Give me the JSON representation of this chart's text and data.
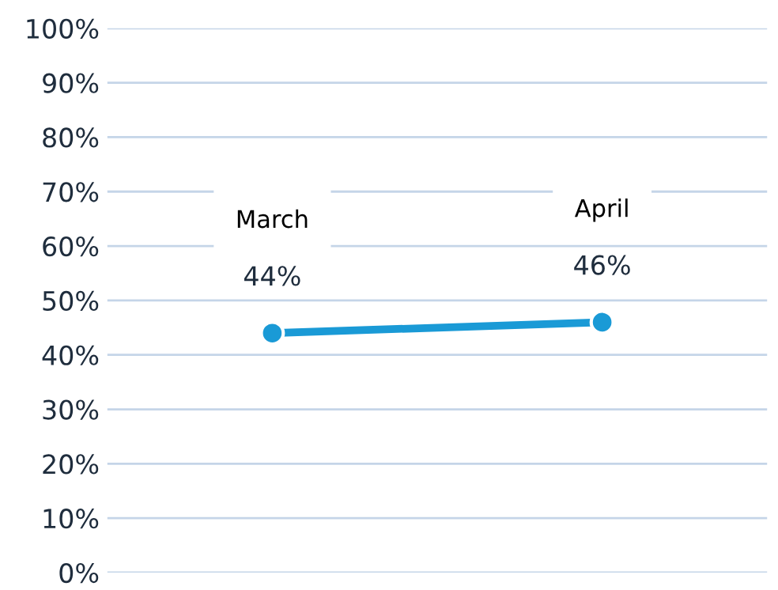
{
  "chart_data": {
    "type": "line",
    "categories": [
      "March",
      "April"
    ],
    "series": [
      {
        "color": "#1a9ad6",
        "values": [
          44,
          46
        ],
        "value_labels": [
          "44%",
          "46%"
        ]
      }
    ],
    "ylim": [
      0,
      100
    ],
    "yticks": [
      {
        "value": 0,
        "label": "0%"
      },
      {
        "value": 10,
        "label": "10%"
      },
      {
        "value": 20,
        "label": "20%"
      },
      {
        "value": 30,
        "label": "30%"
      },
      {
        "value": 40,
        "label": "40%"
      },
      {
        "value": 50,
        "label": "50%"
      },
      {
        "value": 60,
        "label": "60%"
      },
      {
        "value": 70,
        "label": "70%"
      },
      {
        "value": 80,
        "label": "80%"
      },
      {
        "value": 90,
        "label": "90%"
      },
      {
        "value": 100,
        "label": "100%"
      }
    ],
    "grid": "y",
    "marker": "circle",
    "line_style": "solid",
    "tick_labels": "y"
  }
}
